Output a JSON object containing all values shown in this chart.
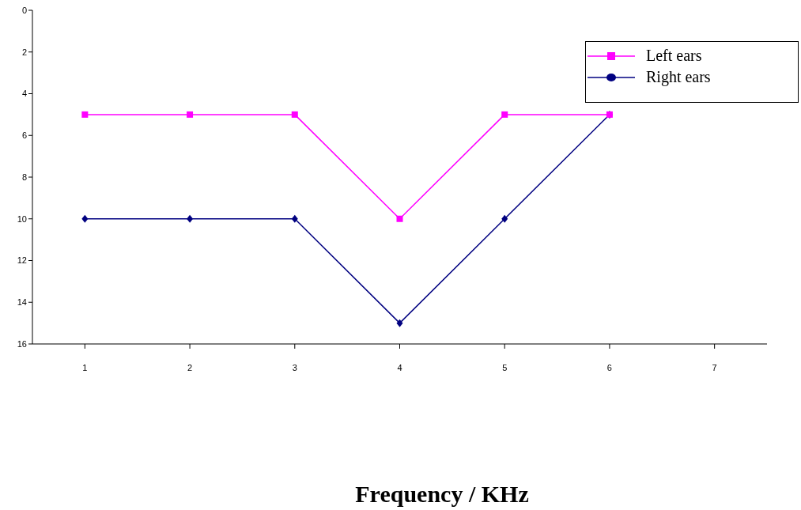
{
  "chart_data": {
    "type": "line",
    "xlabel": "Frequency / KHz",
    "categories": [
      "1",
      "2",
      "3",
      "4",
      "5",
      "6",
      "7"
    ],
    "series": [
      {
        "name": "Left ears",
        "color": "#ff00ff",
        "marker": "square",
        "values": [
          5,
          5,
          5,
          10,
          5,
          5,
          null
        ]
      },
      {
        "name": "Right ears",
        "color": "#000080",
        "marker": "diamond",
        "values": [
          10,
          10,
          10,
          15,
          10,
          5,
          null
        ]
      }
    ],
    "ylim": [
      16,
      0
    ],
    "yticks": [
      0,
      2,
      4,
      6,
      8,
      10,
      12,
      14,
      16
    ],
    "legend": "top right",
    "line_style": "solid"
  }
}
